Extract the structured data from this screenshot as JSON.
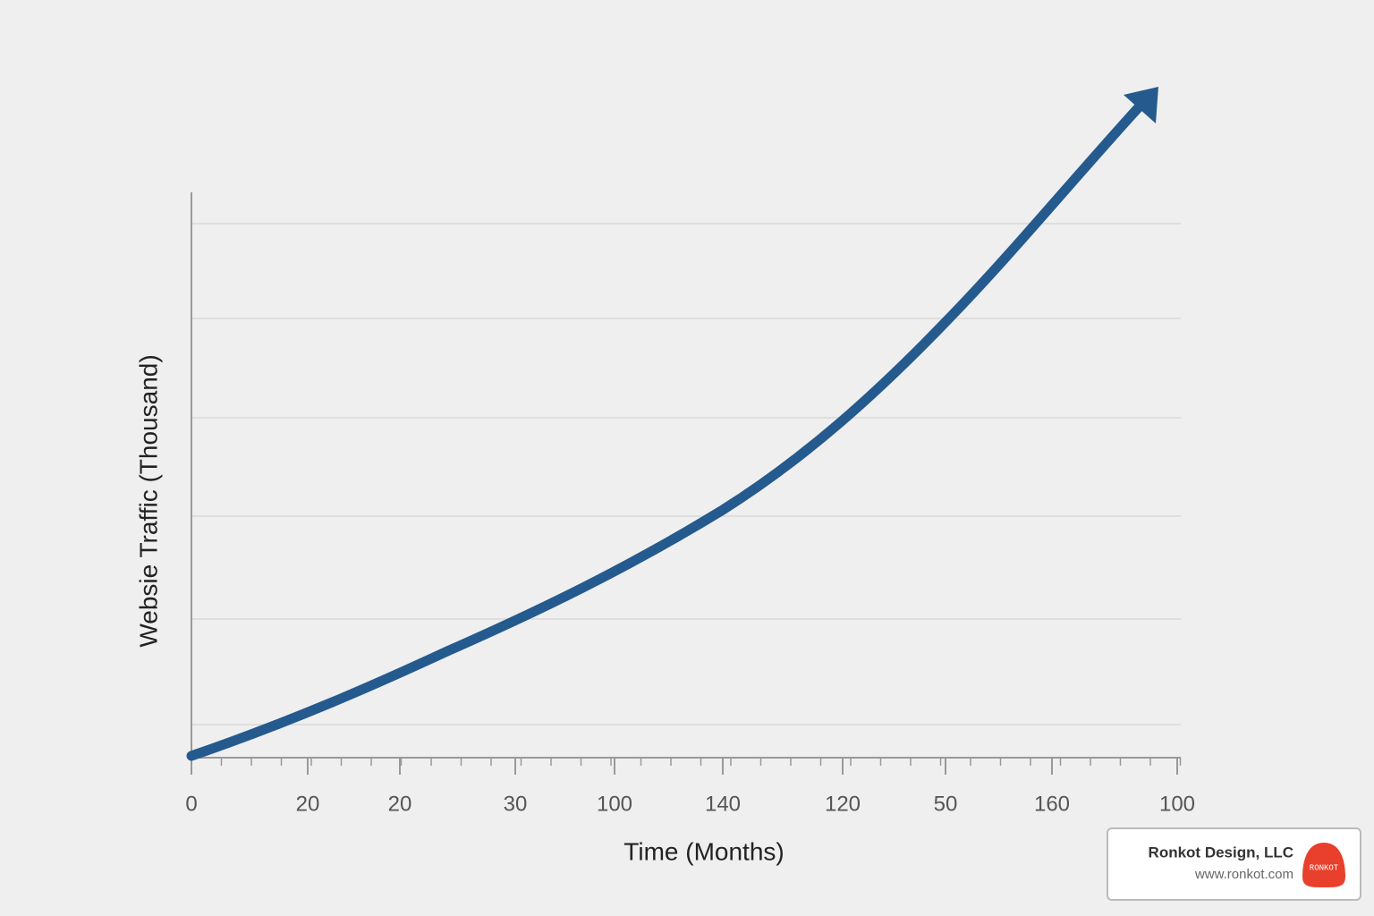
{
  "chart_data": {
    "type": "line",
    "x_label": "Time (Months)",
    "y_label": "Websie Traffic (Thousand)",
    "categories": [
      "0",
      "20",
      "20",
      "30",
      "100",
      "140",
      "120",
      "50",
      "160",
      "100"
    ],
    "color": "#255a8e",
    "grid": true
  },
  "watermark": {
    "company": "Ronkot Design, LLC",
    "url": "www.ronkot.com",
    "logo": "RONKOT"
  }
}
